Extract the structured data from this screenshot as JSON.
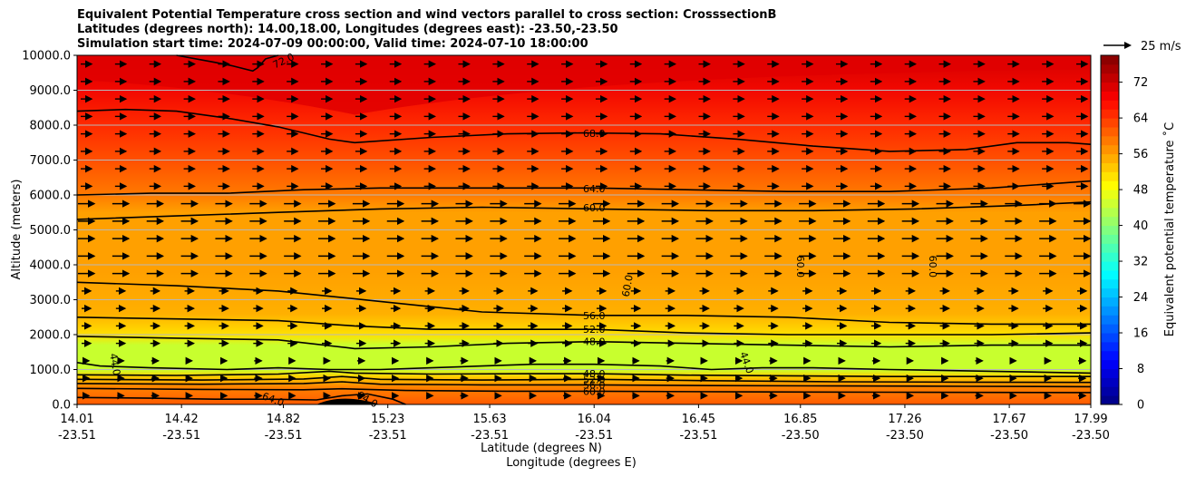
{
  "chart_data": {
    "type": "heatmap",
    "title_lines": [
      "Equivalent Potential Temperature cross section and wind vectors parallel to cross section: CrosssectionB",
      "Latitudes (degrees north): 14.00,18.00, Longitudes (degrees east): -23.50,-23.50",
      "Simulation start time: 2024-07-09 00:00:00, Valid time: 2024-07-10 18:00:00"
    ],
    "xlabel_lines": [
      "Latitude (degrees N)",
      "Longitude (degrees E)"
    ],
    "ylabel": "Altitude (meters)",
    "colorbar_label": "Equivalent potential temperature ˚C",
    "quiver_key": "25 m/s",
    "x_ticks": [
      {
        "lat": "14.01",
        "lon": "-23.51"
      },
      {
        "lat": "14.42",
        "lon": "-23.51"
      },
      {
        "lat": "14.82",
        "lon": "-23.51"
      },
      {
        "lat": "15.23",
        "lon": "-23.51"
      },
      {
        "lat": "15.63",
        "lon": "-23.51"
      },
      {
        "lat": "16.04",
        "lon": "-23.51"
      },
      {
        "lat": "16.45",
        "lon": "-23.51"
      },
      {
        "lat": "16.85",
        "lon": "-23.50"
      },
      {
        "lat": "17.26",
        "lon": "-23.50"
      },
      {
        "lat": "17.67",
        "lon": "-23.50"
      },
      {
        "lat": "17.99",
        "lon": "-23.50"
      }
    ],
    "xlim": [
      14.01,
      17.99
    ],
    "y_ticks": [
      "0.0",
      "1000.0",
      "2000.0",
      "3000.0",
      "4000.0",
      "5000.0",
      "6000.0",
      "7000.0",
      "8000.0",
      "9000.0",
      "10000.0"
    ],
    "ylim": [
      0,
      10000
    ],
    "colorbar_ticks": [
      "0",
      "8",
      "16",
      "24",
      "32",
      "40",
      "48",
      "56",
      "64",
      "72"
    ],
    "colorbar_range": [
      0,
      78
    ],
    "grid": "horizontal",
    "colors": {
      "lowest": "#00007f",
      "blue": "#0000ff",
      "cyan": "#00ffff",
      "green": "#7dff7a",
      "yellow": "#ffff00",
      "orange": "#ff8c00",
      "red": "#ff0000",
      "highest": "#7f0000"
    },
    "contours": [
      {
        "label": "72.0",
        "points": [
          [
            14.4,
            10000
          ],
          [
            14.55,
            9800
          ],
          [
            14.62,
            9700
          ],
          [
            14.7,
            9550
          ],
          [
            14.72,
            9650
          ],
          [
            14.75,
            9900
          ],
          [
            14.8,
            10000
          ]
        ]
      },
      {
        "label": "68.0",
        "points": [
          [
            14.01,
            8400
          ],
          [
            14.2,
            8450
          ],
          [
            14.4,
            8400
          ],
          [
            14.6,
            8200
          ],
          [
            14.8,
            7950
          ],
          [
            15.0,
            7600
          ],
          [
            15.1,
            7500
          ],
          [
            15.4,
            7650
          ],
          [
            15.7,
            7750
          ],
          [
            16.0,
            7780
          ],
          [
            16.3,
            7750
          ],
          [
            16.6,
            7600
          ],
          [
            16.9,
            7400
          ],
          [
            17.2,
            7250
          ],
          [
            17.5,
            7300
          ],
          [
            17.7,
            7500
          ],
          [
            17.9,
            7500
          ],
          [
            17.99,
            7450
          ]
        ]
      },
      {
        "label": "64.0",
        "points": [
          [
            14.01,
            6000
          ],
          [
            14.3,
            6050
          ],
          [
            14.6,
            6050
          ],
          [
            14.9,
            6150
          ],
          [
            15.2,
            6200
          ],
          [
            15.6,
            6200
          ],
          [
            16.04,
            6200
          ],
          [
            16.4,
            6150
          ],
          [
            16.8,
            6100
          ],
          [
            17.2,
            6100
          ],
          [
            17.6,
            6200
          ],
          [
            17.99,
            6400
          ]
        ]
      },
      {
        "label": "60.0",
        "points": [
          [
            14.01,
            5300
          ],
          [
            14.4,
            5400
          ],
          [
            14.8,
            5500
          ],
          [
            15.2,
            5600
          ],
          [
            15.6,
            5650
          ],
          [
            16.04,
            5600
          ],
          [
            16.5,
            5550
          ],
          [
            16.9,
            5550
          ],
          [
            17.3,
            5600
          ],
          [
            17.7,
            5700
          ],
          [
            17.99,
            5800
          ]
        ]
      },
      {
        "label": "56.0",
        "points": [
          [
            14.01,
            3500
          ],
          [
            14.4,
            3400
          ],
          [
            14.8,
            3250
          ],
          [
            15.2,
            2950
          ],
          [
            15.6,
            2650
          ],
          [
            16.04,
            2550
          ],
          [
            16.4,
            2550
          ],
          [
            16.8,
            2500
          ],
          [
            17.2,
            2350
          ],
          [
            17.6,
            2300
          ],
          [
            17.99,
            2300
          ]
        ]
      },
      {
        "label": "52.0",
        "points": [
          [
            14.01,
            2500
          ],
          [
            14.4,
            2450
          ],
          [
            14.8,
            2400
          ],
          [
            15.1,
            2250
          ],
          [
            15.4,
            2150
          ],
          [
            15.7,
            2150
          ],
          [
            16.04,
            2150
          ],
          [
            16.4,
            2050
          ],
          [
            16.8,
            2000
          ],
          [
            17.2,
            2000
          ],
          [
            17.6,
            2000
          ],
          [
            17.99,
            2050
          ]
        ]
      },
      {
        "label": "48.0",
        "points": [
          [
            14.01,
            1950
          ],
          [
            14.4,
            1900
          ],
          [
            14.8,
            1850
          ],
          [
            15.1,
            1600
          ],
          [
            15.4,
            1650
          ],
          [
            15.7,
            1750
          ],
          [
            16.04,
            1800
          ],
          [
            16.4,
            1750
          ],
          [
            16.8,
            1700
          ],
          [
            17.2,
            1650
          ],
          [
            17.6,
            1700
          ],
          [
            17.99,
            1700
          ]
        ]
      },
      {
        "label": "44.0",
        "points": [
          [
            14.01,
            1200
          ],
          [
            14.1,
            1100
          ],
          [
            14.3,
            1050
          ],
          [
            14.6,
            1000
          ],
          [
            14.8,
            1050
          ],
          [
            15.0,
            1000
          ],
          [
            15.2,
            1000
          ],
          [
            15.4,
            1050
          ],
          [
            15.6,
            1100
          ],
          [
            15.8,
            1150
          ],
          [
            16.04,
            1150
          ],
          [
            16.3,
            1100
          ],
          [
            16.5,
            1000
          ],
          [
            16.7,
            1050
          ],
          [
            16.9,
            1050
          ],
          [
            17.2,
            1000
          ],
          [
            17.6,
            950
          ],
          [
            17.99,
            900
          ]
        ]
      },
      {
        "label": "48.0",
        "points": [
          [
            14.01,
            850
          ],
          [
            14.4,
            830
          ],
          [
            14.8,
            870
          ],
          [
            15.0,
            950
          ],
          [
            15.1,
            900
          ],
          [
            15.4,
            870
          ],
          [
            15.8,
            880
          ],
          [
            16.04,
            880
          ],
          [
            16.4,
            840
          ],
          [
            16.8,
            820
          ],
          [
            17.2,
            800
          ],
          [
            17.6,
            800
          ],
          [
            17.99,
            800
          ]
        ]
      },
      {
        "label": "52.0",
        "points": [
          [
            14.01,
            720
          ],
          [
            14.5,
            700
          ],
          [
            14.9,
            730
          ],
          [
            15.05,
            800
          ],
          [
            15.2,
            720
          ],
          [
            15.6,
            700
          ],
          [
            16.04,
            720
          ],
          [
            16.5,
            680
          ],
          [
            17.0,
            650
          ],
          [
            17.5,
            640
          ],
          [
            17.99,
            630
          ]
        ]
      },
      {
        "label": "56.0",
        "points": [
          [
            14.01,
            600
          ],
          [
            14.5,
            580
          ],
          [
            14.9,
            600
          ],
          [
            15.05,
            650
          ],
          [
            15.2,
            580
          ],
          [
            15.6,
            560
          ],
          [
            16.04,
            560
          ],
          [
            16.5,
            540
          ],
          [
            17.0,
            530
          ],
          [
            17.5,
            520
          ],
          [
            17.99,
            510
          ]
        ]
      },
      {
        "label": "60.0",
        "points": [
          [
            14.01,
            460
          ],
          [
            14.5,
            430
          ],
          [
            14.9,
            420
          ],
          [
            15.05,
            450
          ],
          [
            15.3,
            400
          ],
          [
            15.7,
            380
          ],
          [
            16.04,
            380
          ],
          [
            16.6,
            360
          ],
          [
            17.2,
            350
          ],
          [
            17.99,
            340
          ]
        ]
      },
      {
        "label": "64.0",
        "points": [
          [
            14.01,
            200
          ],
          [
            14.3,
            180
          ],
          [
            14.55,
            150
          ],
          [
            14.75,
            150
          ],
          [
            14.95,
            130
          ],
          [
            15.05,
            250
          ],
          [
            15.15,
            300
          ],
          [
            15.25,
            150
          ],
          [
            15.3,
            0
          ]
        ]
      }
    ],
    "contour_labels": [
      {
        "text": "72.0",
        "lat": 14.82,
        "alt": 9850,
        "rotate": -25
      },
      {
        "text": "68.0",
        "lat": 16.04,
        "alt": 7760,
        "rotate": 0
      },
      {
        "text": "64.0",
        "lat": 16.04,
        "alt": 6180,
        "rotate": 0
      },
      {
        "text": "60.0",
        "lat": 16.04,
        "alt": 5640,
        "rotate": 0
      },
      {
        "text": "60.0",
        "lat": 16.17,
        "alt": 3400,
        "rotate": -80
      },
      {
        "text": "60.0",
        "lat": 16.85,
        "alt": 3950,
        "rotate": 90
      },
      {
        "text": "60.0",
        "lat": 17.37,
        "alt": 3950,
        "rotate": 90
      },
      {
        "text": "56.0",
        "lat": 16.04,
        "alt": 2550,
        "rotate": 0
      },
      {
        "text": "52.0",
        "lat": 16.04,
        "alt": 2150,
        "rotate": 0
      },
      {
        "text": "48.0",
        "lat": 16.04,
        "alt": 1800,
        "rotate": 0
      },
      {
        "text": "44.0",
        "lat": 14.16,
        "alt": 1150,
        "rotate": 80
      },
      {
        "text": "44.0",
        "lat": 16.64,
        "alt": 1200,
        "rotate": 70
      },
      {
        "text": "48.0",
        "lat": 16.04,
        "alt": 880,
        "rotate": 0
      },
      {
        "text": "52.0",
        "lat": 16.04,
        "alt": 720,
        "rotate": 0
      },
      {
        "text": "56.0",
        "lat": 16.04,
        "alt": 560,
        "rotate": 0
      },
      {
        "text": "60.0",
        "lat": 16.04,
        "alt": 380,
        "rotate": 0
      },
      {
        "text": "64.0",
        "lat": 14.78,
        "alt": 150,
        "rotate": 20
      },
      {
        "text": "64.0",
        "lat": 15.15,
        "alt": 150,
        "rotate": 30
      }
    ]
  }
}
